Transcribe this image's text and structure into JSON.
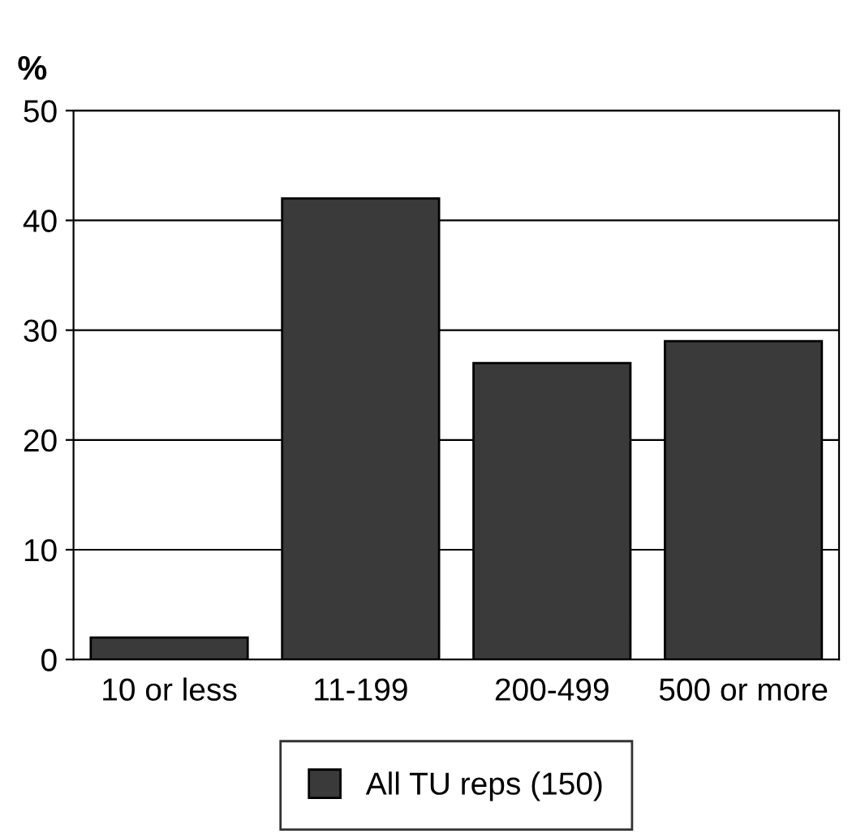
{
  "chart_data": {
    "type": "bar",
    "ylabel": "%",
    "categories": [
      "10 or less",
      "11-199",
      "200-499",
      "500 or more"
    ],
    "series": [
      {
        "name": "All TU reps (150)",
        "color": "#3a3a3a",
        "values": [
          2,
          42,
          27,
          29
        ]
      }
    ],
    "ylim": [
      0,
      50
    ],
    "yticks": [
      0,
      10,
      20,
      30,
      40,
      50
    ],
    "grid": "y",
    "legend": "bottom"
  }
}
